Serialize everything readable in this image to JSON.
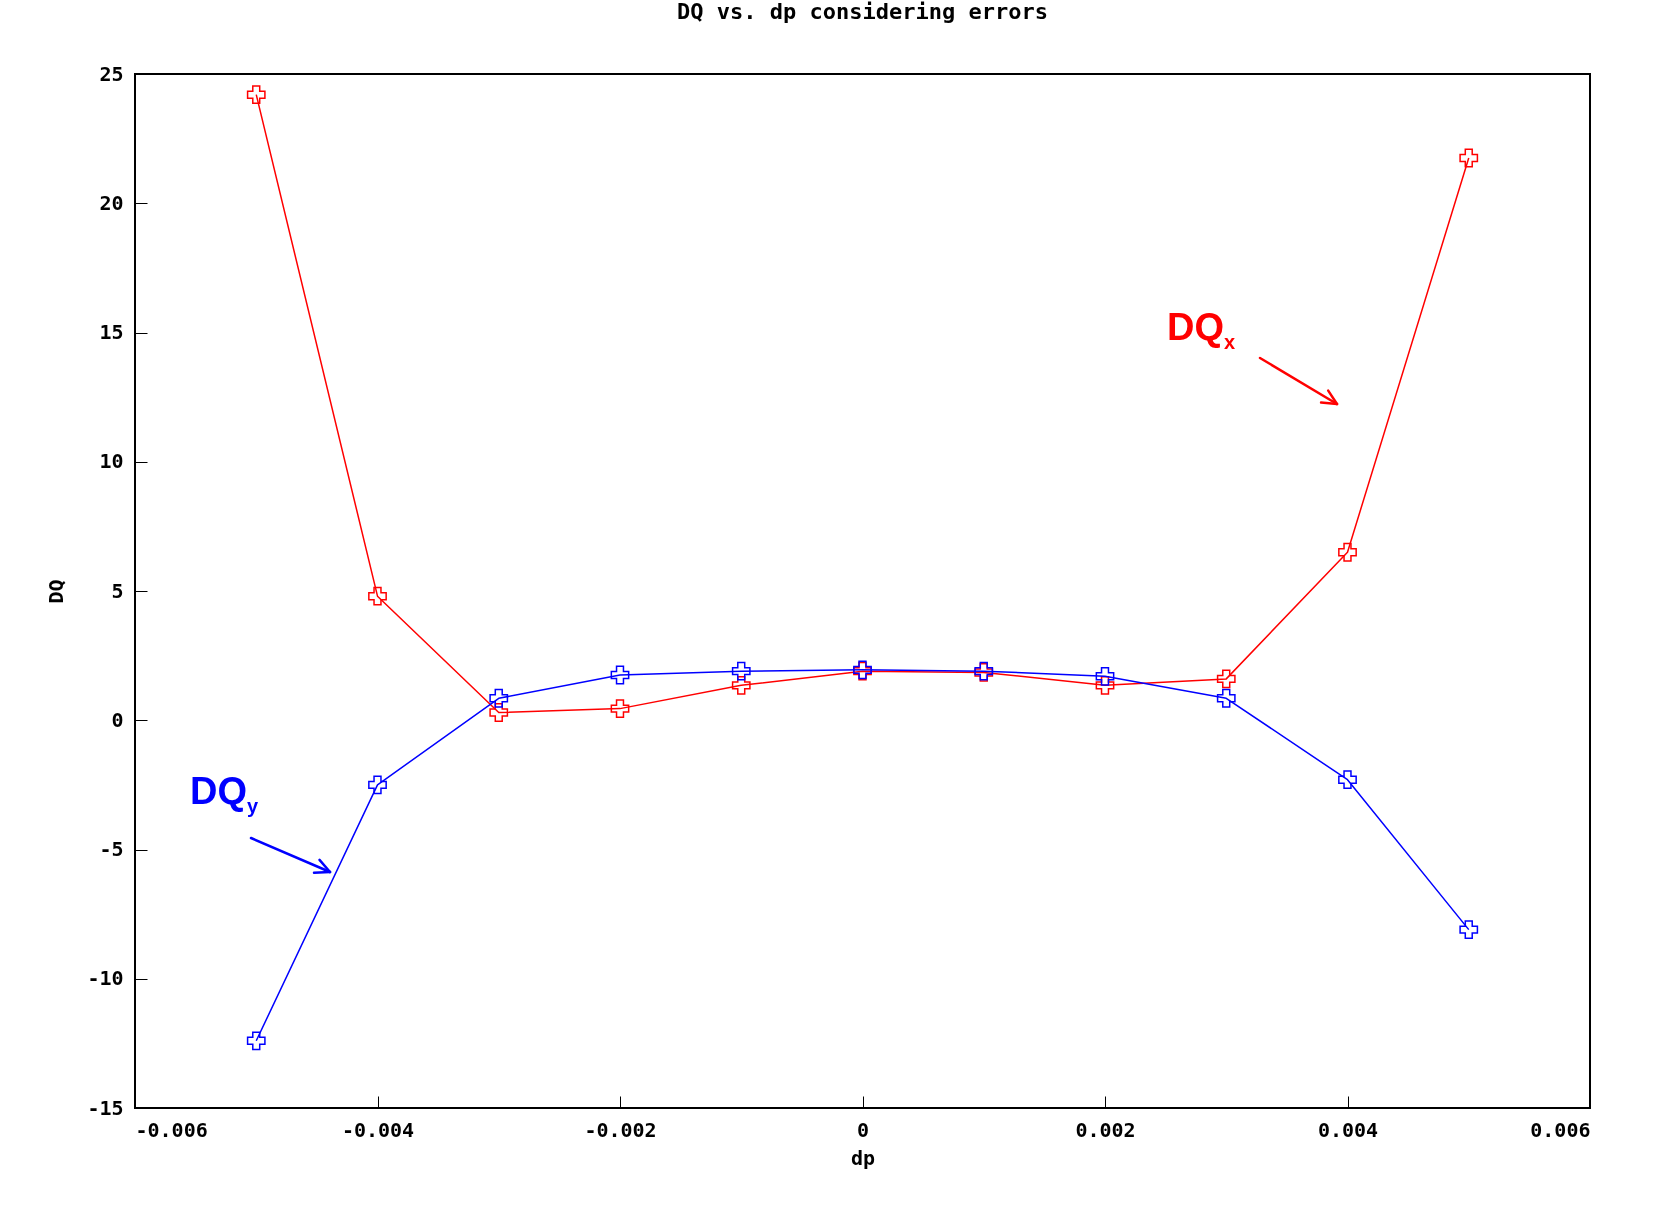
{
  "chart_data": {
    "type": "line",
    "title": "DQ vs. dp considering errors",
    "xlabel": "dp",
    "ylabel": "DQ",
    "x": [
      -0.005,
      -0.004,
      -0.003,
      -0.002,
      -0.001,
      0,
      0.001,
      0.002,
      0.003,
      0.004,
      0.005
    ],
    "series": [
      {
        "name": "DQ$_{x}$",
        "color": "#ff0000",
        "marker": "cross",
        "values": [
          24.2,
          4.8,
          0.3,
          0.45,
          1.35,
          1.9,
          1.85,
          1.35,
          1.6,
          6.5,
          21.75
        ]
      },
      {
        "name": "DQ$_{y}$",
        "color": "#0000ff",
        "marker": "cross",
        "values": [
          -12.4,
          -2.5,
          0.85,
          1.75,
          1.9,
          1.95,
          1.9,
          1.7,
          0.85,
          -2.3,
          -8.1
        ]
      }
    ],
    "xlim": [
      -0.006,
      0.006
    ],
    "xticks": [
      {
        "value": -0.006,
        "label": "-0.006"
      },
      {
        "value": -0.004,
        "label": "-0.004"
      },
      {
        "value": -0.002,
        "label": "-0.002"
      },
      0,
      {
        "value": 0.002,
        "label": "0.002"
      },
      {
        "value": 0.004,
        "label": "0.004"
      },
      {
        "value": 0.006,
        "label": "0.006"
      }
    ],
    "ylim": [
      -15,
      25
    ],
    "yticks": [
      -15,
      -10,
      -5,
      0,
      5,
      10,
      15,
      20,
      25
    ],
    "grid": false,
    "legend": false
  }
}
